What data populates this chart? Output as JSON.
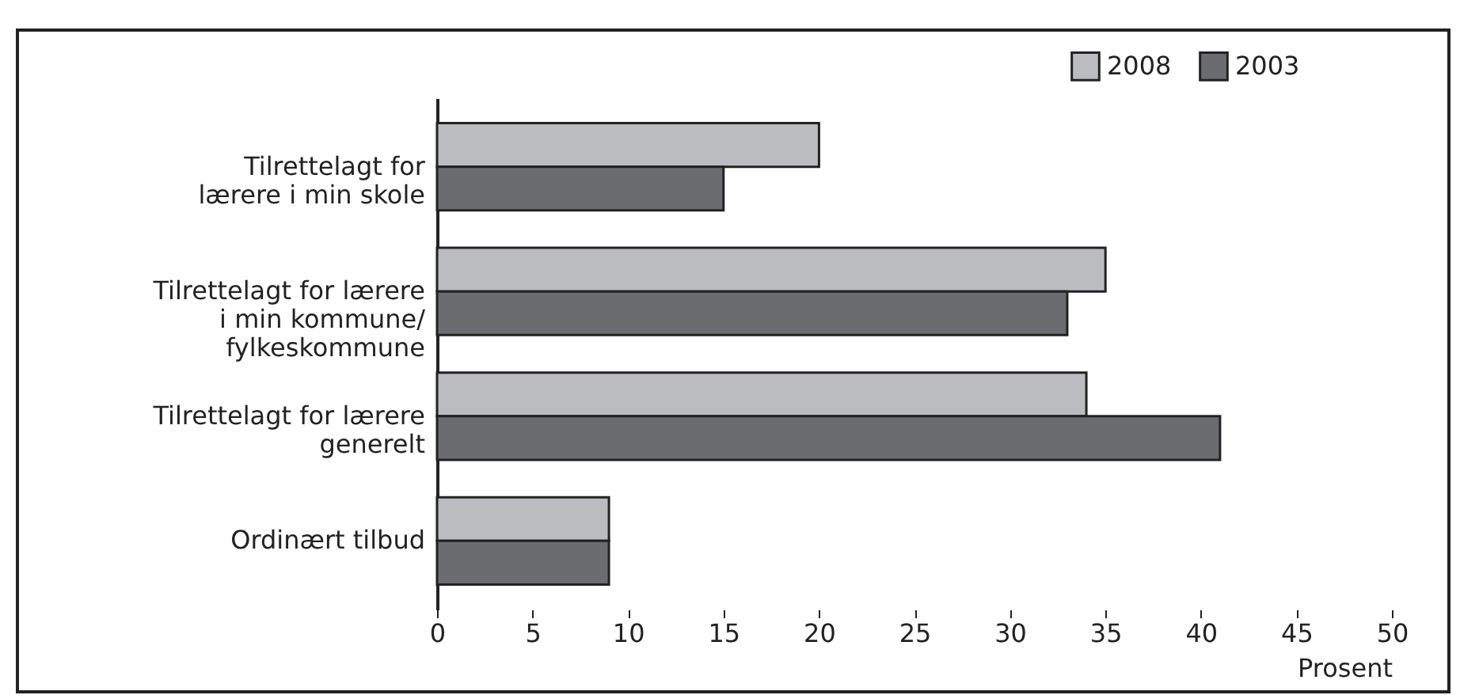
{
  "chart_data": {
    "type": "bar",
    "orientation": "horizontal",
    "xlabel": "Prosent",
    "categories": [
      "Tilrettelagt for\nlærere i min skole",
      "Tilrettelagt for lærere\ni min kommune/\nfylkeskommune",
      "Tilrettelagt for lærere\ngenerelt",
      "Ordinært tilbud"
    ],
    "series": [
      {
        "name": "2008",
        "color": "#bbbcc0",
        "values": [
          20,
          35,
          34,
          9
        ]
      },
      {
        "name": "2003",
        "color": "#6b6c70",
        "values": [
          15,
          33,
          41,
          9
        ]
      }
    ],
    "xlim": [
      0,
      50
    ],
    "xticks": [
      0,
      5,
      10,
      15,
      20,
      25,
      30,
      35,
      40,
      45,
      50
    ],
    "grid": false,
    "legend": "top right"
  }
}
